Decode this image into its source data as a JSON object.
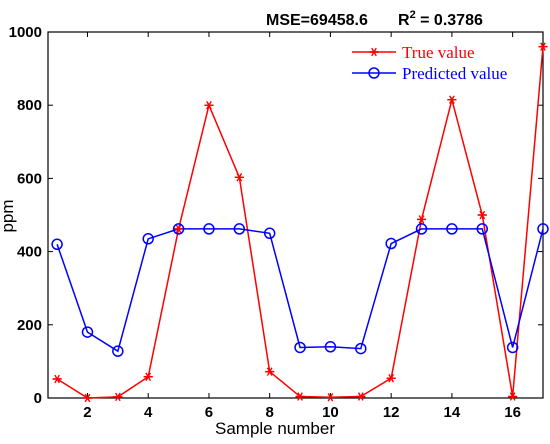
{
  "chart_data": {
    "type": "line",
    "title_mse": "MSE=69458.6",
    "title_r2_prefix": "R",
    "title_r2_sup": "2",
    "title_r2_value": " = 0.3786",
    "xlabel": "Sample number",
    "ylabel": "ppm",
    "x": [
      1,
      2,
      3,
      4,
      5,
      6,
      7,
      8,
      9,
      10,
      11,
      12,
      13,
      14,
      15,
      16,
      17
    ],
    "xlim": [
      0.7,
      17
    ],
    "ylim": [
      0,
      1000
    ],
    "xticks": [
      "2",
      "4",
      "6",
      "8",
      "10",
      "12",
      "14",
      "16"
    ],
    "yticks": [
      "0",
      "200",
      "400",
      "600",
      "800",
      "1000"
    ],
    "legend_position": "top-right",
    "grid": false,
    "series": [
      {
        "name": "True value",
        "color": "#ff0000",
        "marker": "asterisk",
        "values": [
          52,
          0,
          3,
          58,
          462,
          800,
          603,
          72,
          4,
          2,
          4,
          54,
          488,
          815,
          500,
          4,
          960
        ]
      },
      {
        "name": "Predicted value",
        "color": "#0000ff",
        "marker": "circle",
        "values": [
          420,
          180,
          128,
          435,
          462,
          462,
          462,
          450,
          138,
          140,
          135,
          422,
          462,
          462,
          462,
          138,
          462
        ]
      }
    ]
  }
}
